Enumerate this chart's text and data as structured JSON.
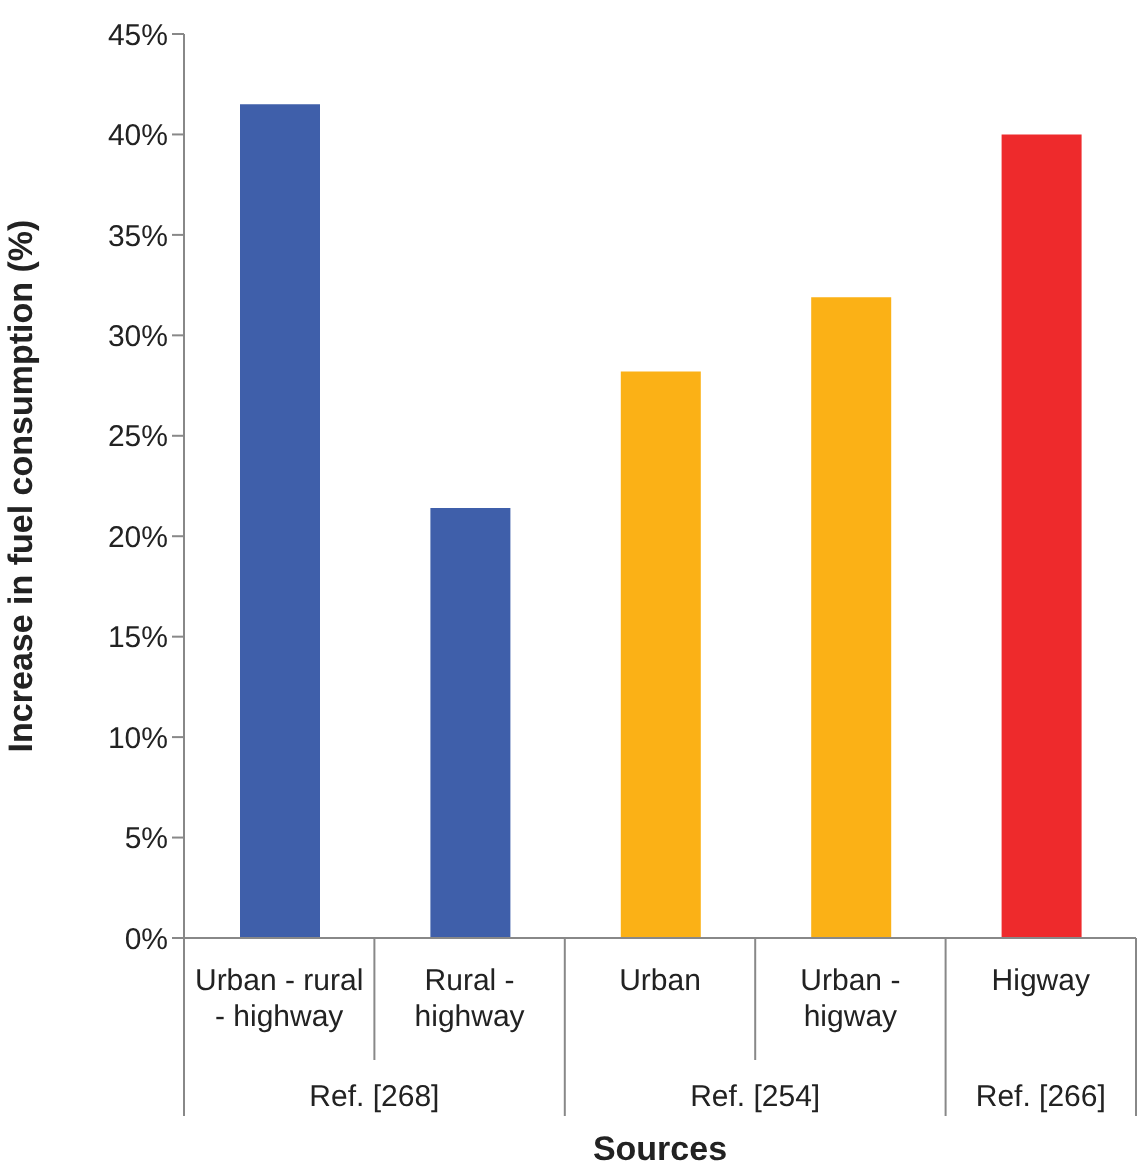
{
  "chart_data": {
    "type": "bar",
    "xlabel": "Sources",
    "ylabel": "Increase in fuel consumption (%)",
    "categories": [
      "Urban - rural - highway",
      "Rural - highway",
      "Urban",
      "Urban - higway",
      "Higway"
    ],
    "values": [
      41.5,
      21.4,
      28.2,
      31.9,
      40
    ],
    "colors": [
      "#3f5faa",
      "#3f5faa",
      "#fbb116",
      "#fbb116",
      "#ee2a2c"
    ],
    "ylim": [
      0,
      45
    ],
    "yticks": [
      {
        "value": 0,
        "label": "0%"
      },
      {
        "value": 5,
        "label": "5%"
      },
      {
        "value": 10,
        "label": "10%"
      },
      {
        "value": 15,
        "label": "15%"
      },
      {
        "value": 20,
        "label": "20%"
      },
      {
        "value": 25,
        "label": "25%"
      },
      {
        "value": 30,
        "label": "30%"
      },
      {
        "value": 35,
        "label": "35%"
      },
      {
        "value": 40,
        "label": "40%"
      },
      {
        "value": 45,
        "label": "45%"
      }
    ],
    "annotations": [
      "Ref. [268]",
      "Ref. [254]",
      "Ref. [266]"
    ],
    "grid": false,
    "legend": false
  }
}
